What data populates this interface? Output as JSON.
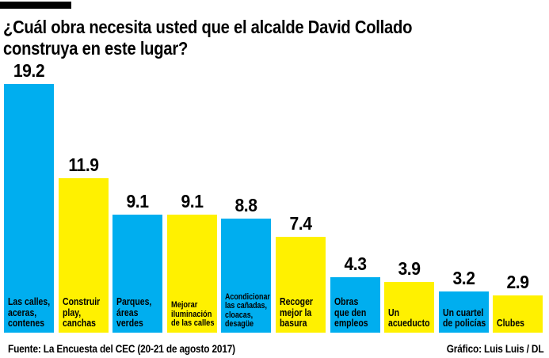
{
  "page": {
    "background_color": "#FFFFFF",
    "masthead_color": "#000000"
  },
  "header": {
    "title": "¿Cuál obra necesita usted que el alcalde David Collado construya en este lugar?",
    "title_line1": "¿Cuál obra necesita usted que el alcalde David Collado",
    "title_line2": "construya en este lugar?"
  },
  "chart_data": {
    "type": "bar",
    "title": "¿Cuál obra necesita usted que el alcalde David Collado construya en este lugar?",
    "xlabel": "",
    "ylabel": "",
    "ylim": [
      0,
      20
    ],
    "grid": false,
    "legend": "none",
    "axes_visible": false,
    "data_labels_visible": true,
    "categories": [
      "Las calles, aceras, contenes",
      "Construir play, canchas",
      "Parques, áreas verdes",
      "Mejorar iluminación de las calles",
      "Acondicionar las cañadas, cloacas, desagüe",
      "Recoger mejor la basura",
      "Obras que den empleos",
      "Un acueducto",
      "Un cuartel de policías",
      "Clubes"
    ],
    "category_lines": [
      [
        "Las calles,",
        "aceras,",
        "contenes"
      ],
      [
        "Construir",
        "play,",
        "canchas"
      ],
      [
        "Parques,",
        "áreas",
        "verdes"
      ],
      [
        "Mejorar",
        "iluminación",
        "de las calles"
      ],
      [
        "Acondicionar",
        "las cañadas,",
        "cloacas,",
        "desagüe"
      ],
      [
        "Recoger",
        "mejor la",
        "basura"
      ],
      [
        "Obras",
        "que den",
        "empleos"
      ],
      [
        "Un",
        "acueducto"
      ],
      [
        "Un cuartel",
        "de policías"
      ],
      [
        "Clubes"
      ]
    ],
    "values": [
      19.2,
      11.9,
      9.1,
      9.1,
      8.8,
      7.4,
      4.3,
      3.9,
      3.2,
      2.9
    ],
    "value_labels": [
      "19.2",
      "11.9",
      "9.1",
      "9.1",
      "8.8",
      "7.4",
      "4.3",
      "3.9",
      "3.2",
      "2.9"
    ],
    "bar_color_pattern": [
      "#00AEEF",
      "#FFF100"
    ],
    "colors": {
      "blue": "#00AEEF",
      "yellow": "#FFF100",
      "text": "#000000"
    }
  },
  "footer": {
    "source": "Fuente: La Encuesta del CEC (20-21 de agosto 2017)",
    "credit": "Gráfico: Luis Luis / DL"
  }
}
